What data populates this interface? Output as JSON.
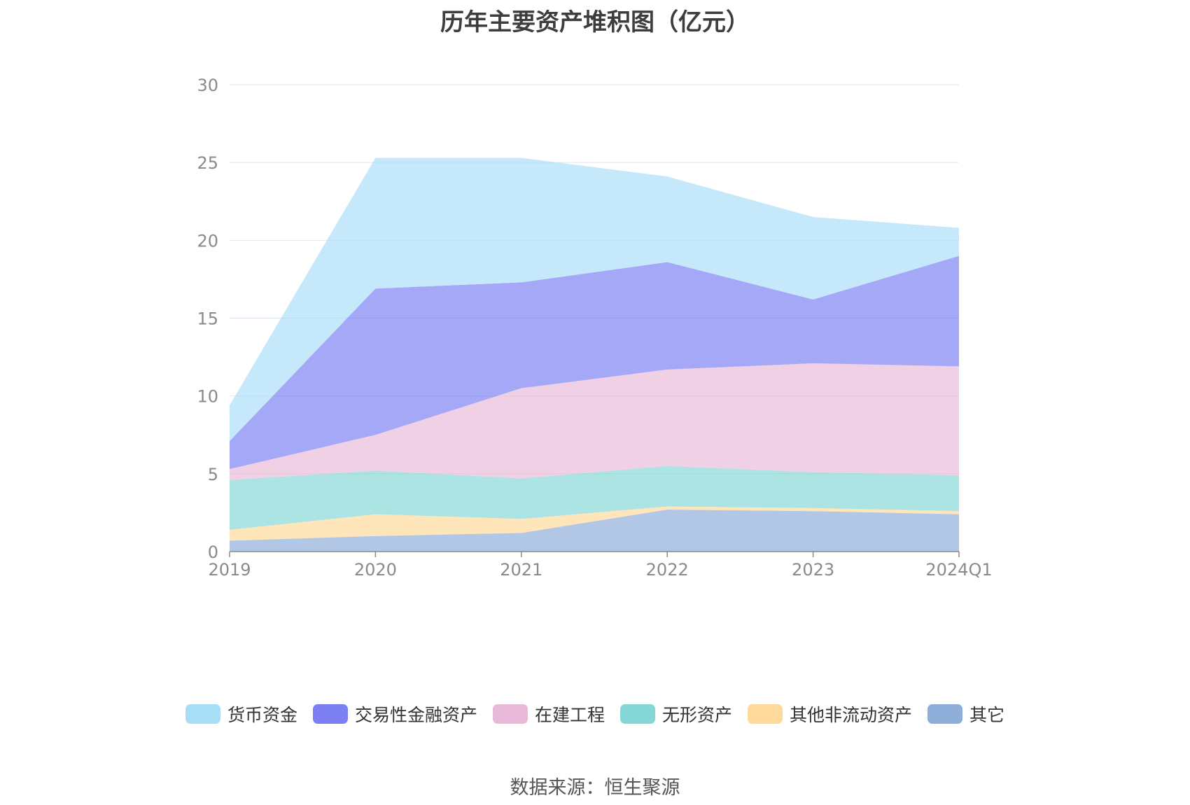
{
  "chart_data": {
    "type": "area",
    "stacked": true,
    "title": "历年主要资产堆积图（亿元）",
    "xlabel": "",
    "ylabel": "",
    "categories": [
      "2019",
      "2020",
      "2021",
      "2022",
      "2023",
      "2024Q1"
    ],
    "ylim": [
      0,
      30
    ],
    "yticks": [
      0,
      5,
      10,
      15,
      20,
      25,
      30
    ],
    "grid": true,
    "legend_position": "bottom",
    "series": [
      {
        "name": "其它",
        "color": "#8eadd9",
        "values": [
          0.7,
          1.0,
          1.2,
          2.7,
          2.6,
          2.4
        ]
      },
      {
        "name": "其他非流动资产",
        "color": "#ffd99a",
        "values": [
          0.7,
          1.4,
          0.9,
          0.2,
          0.2,
          0.2
        ]
      },
      {
        "name": "无形资产",
        "color": "#85d6d6",
        "values": [
          3.2,
          2.8,
          2.6,
          2.6,
          2.3,
          2.3
        ]
      },
      {
        "name": "在建工程",
        "color": "#e8b9d8",
        "values": [
          0.7,
          2.3,
          5.8,
          6.2,
          7.0,
          7.0
        ]
      },
      {
        "name": "交易性金融资产",
        "color": "#7b7ff2",
        "values": [
          1.8,
          9.4,
          6.8,
          6.9,
          4.1,
          7.1
        ]
      },
      {
        "name": "货币资金",
        "color": "#a9def7",
        "values": [
          2.3,
          8.4,
          8.0,
          5.5,
          5.3,
          1.8
        ]
      }
    ]
  },
  "legend_order": [
    "货币资金",
    "交易性金融资产",
    "在建工程",
    "无形资产",
    "其他非流动资产",
    "其它"
  ],
  "source_text": "数据来源：恒生聚源"
}
